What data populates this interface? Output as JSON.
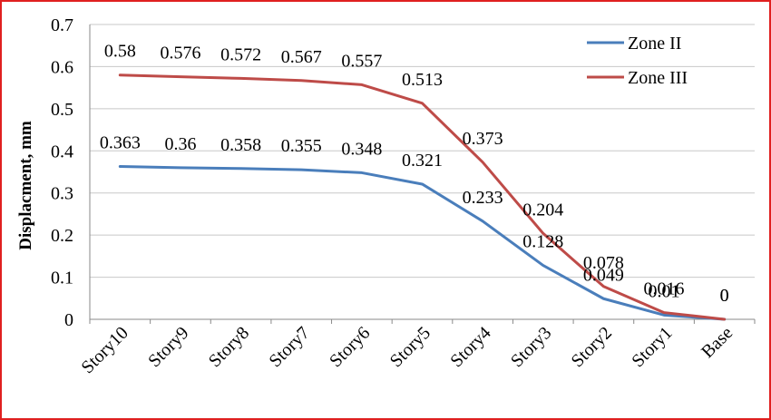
{
  "chart_data": {
    "type": "line",
    "categories": [
      "Story10",
      "Story9",
      "Story8",
      "Story7",
      "Story6",
      "Story5",
      "Story4",
      "Story3",
      "Story2",
      "Story1",
      "Base"
    ],
    "series": [
      {
        "name": "Zone II",
        "color": "#4a7ebb",
        "values": [
          0.363,
          0.36,
          0.358,
          0.355,
          0.348,
          0.321,
          0.233,
          0.128,
          0.049,
          0.01,
          0
        ],
        "labels": [
          "0.363",
          "0.36",
          "0.358",
          "0.355",
          "0.348",
          "0.321",
          "0.233",
          "0.128",
          "0.049",
          "0.01",
          "0"
        ]
      },
      {
        "name": "Zone III",
        "color": "#be4b48",
        "values": [
          0.58,
          0.576,
          0.572,
          0.567,
          0.557,
          0.513,
          0.373,
          0.204,
          0.078,
          0.016,
          0
        ],
        "labels": [
          "0.58",
          "0.576",
          "0.572",
          "0.567",
          "0.557",
          "0.513",
          "0.373",
          "0.204",
          "0.078",
          "0.016",
          "0"
        ]
      }
    ],
    "ylabel": "Displacment, mm",
    "ylim": [
      0,
      0.7
    ],
    "yticks": [
      "0",
      "0.1",
      "0.2",
      "0.3",
      "0.4",
      "0.5",
      "0.6",
      "0.7"
    ],
    "ytick_values": [
      0,
      0.1,
      0.2,
      0.3,
      0.4,
      0.5,
      0.6,
      0.7
    ],
    "grid": true,
    "legend_position": "top-right",
    "border_color": "#e02020"
  }
}
